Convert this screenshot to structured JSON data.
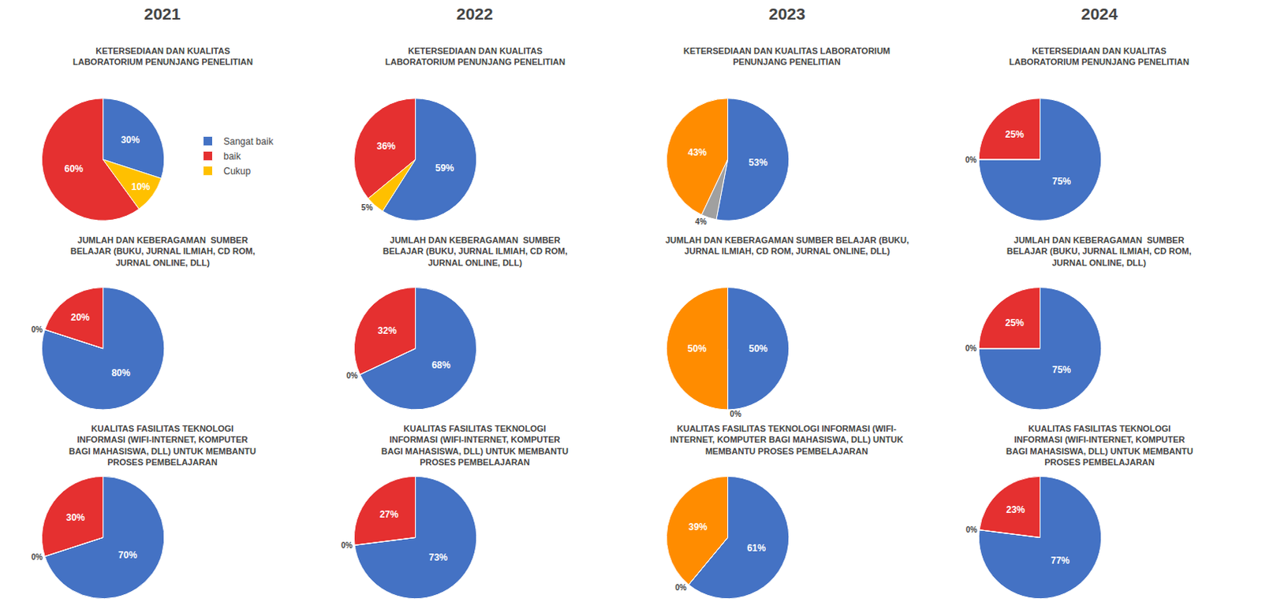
{
  "chart_data": [
    {
      "type": "pie",
      "title": "KETERSEDIAAN DAN KUALITAS\nLABORATORIUM PENUNJANG PENELITIAN",
      "annotations": [
        "2021"
      ],
      "categories": [
        "Sangat baik",
        "baik",
        "Cukup"
      ],
      "values": [
        30,
        60,
        10
      ],
      "value_labels": [
        "30%",
        "60%",
        "10%"
      ],
      "colors": [
        "#4472C4",
        "#E53030",
        "#FFC000"
      ],
      "data_labels": true,
      "legend": "right"
    },
    {
      "type": "pie",
      "title": "KETERSEDIAAN DAN KUALITAS\nLABORATORIUM PENUNJANG PENELITIAN",
      "annotations": [
        "2022"
      ],
      "categories": [
        "Sangat baik",
        "baik",
        "Cukup"
      ],
      "values": [
        59,
        36,
        5
      ],
      "value_labels": [
        "59%",
        "36%",
        "5%"
      ],
      "colors": [
        "#4472C4",
        "#E53030",
        "#FFC000"
      ],
      "data_labels": true,
      "legend": "right"
    },
    {
      "type": "pie",
      "title": "KETERSEDIAAN DAN KUALITAS LABORATORIUM\nPENUNJANG PENELITIAN",
      "annotations": [
        "2023"
      ],
      "categories": [
        "Sangat baik",
        "baik",
        "Cukup"
      ],
      "values": [
        53,
        43,
        4
      ],
      "value_labels": [
        "53%",
        "43%",
        "4%"
      ],
      "colors": [
        "#4472C4",
        "#FF8C00",
        "#A0A0A0"
      ],
      "data_labels": true,
      "legend": "right"
    },
    {
      "type": "pie",
      "title": "KETERSEDIAAN DAN KUALITAS\nLABORATORIUM PENUNJANG PENELITIAN",
      "annotations": [
        "2024"
      ],
      "categories": [
        "Sangat baik",
        "baik",
        "Cukup"
      ],
      "values": [
        75,
        25,
        0
      ],
      "value_labels": [
        "75%",
        "25%",
        "0%"
      ],
      "colors": [
        "#4472C4",
        "#E53030",
        "#FFC000"
      ],
      "data_labels": true,
      "legend": "right"
    },
    {
      "type": "pie",
      "title": "JUMLAH DAN KEBERAGAMAN  SUMBER\nBELAJAR (BUKU, JURNAL ILMIAH, CD ROM,\nJURNAL ONLINE, DLL)",
      "categories": [
        "Sangat baik",
        "baik",
        "Cukup"
      ],
      "values": [
        80,
        20,
        0
      ],
      "value_labels": [
        "80%",
        "20%",
        "0%"
      ],
      "colors": [
        "#4472C4",
        "#E53030",
        "#FFC000"
      ],
      "data_labels": true,
      "legend": "right"
    },
    {
      "type": "pie",
      "title": "JUMLAH DAN KEBERAGAMAN  SUMBER\nBELAJAR (BUKU, JURNAL ILMIAH, CD ROM,\nJURNAL ONLINE, DLL)",
      "categories": [
        "Sangat baik",
        "baik",
        "Cukup"
      ],
      "values": [
        68,
        32,
        0
      ],
      "value_labels": [
        "68%",
        "32%",
        "0%"
      ],
      "colors": [
        "#4472C4",
        "#E53030",
        "#FFC000"
      ],
      "data_labels": true,
      "legend": "right"
    },
    {
      "type": "pie",
      "title": "JUMLAH DAN KEBERAGAMAN SUMBER BELAJAR (BUKU,\nJURNAL ILMIAH, CD ROM, JURNAL ONLINE, DLL)",
      "categories": [
        "Sangat baik",
        "baik",
        "Cukup"
      ],
      "values": [
        50,
        50,
        0
      ],
      "value_labels": [
        "50%",
        "50%",
        "0%"
      ],
      "colors": [
        "#4472C4",
        "#FF8C00",
        "#A0A0A0"
      ],
      "data_labels": true,
      "legend": "right"
    },
    {
      "type": "pie",
      "title": "JUMLAH DAN KEBERAGAMAN  SUMBER\nBELAJAR (BUKU, JURNAL ILMIAH, CD ROM,\nJURNAL ONLINE, DLL)",
      "categories": [
        "Sangat baik",
        "baik",
        "Cukup"
      ],
      "values": [
        75,
        25,
        0
      ],
      "value_labels": [
        "75%",
        "25%",
        "0%"
      ],
      "colors": [
        "#4472C4",
        "#E53030",
        "#FFC000"
      ],
      "data_labels": true,
      "legend": "right"
    },
    {
      "type": "pie",
      "title": "KUALITAS FASILITAS TEKNOLOGI\nINFORMASI (WIFI-INTERNET, KOMPUTER\nBAGI MAHASISWA, DLL) UNTUK MEMBANTU\nPROSES PEMBELAJARAN",
      "categories": [
        "Sangat baik",
        "baik",
        "Cukup"
      ],
      "values": [
        70,
        30,
        0
      ],
      "value_labels": [
        "70%",
        "30%",
        "0%"
      ],
      "colors": [
        "#4472C4",
        "#E53030",
        "#FFC000"
      ],
      "data_labels": true,
      "legend": "right"
    },
    {
      "type": "pie",
      "title": "KUALITAS FASILITAS TEKNOLOGI\nINFORMASI (WIFI-INTERNET, KOMPUTER\nBAGI MAHASISWA, DLL) UNTUK MEMBANTU\nPROSES PEMBELAJARAN",
      "categories": [
        "Sangat baik",
        "baik",
        "Cukup"
      ],
      "values": [
        73,
        27,
        0
      ],
      "value_labels": [
        "73%",
        "27%",
        "0%"
      ],
      "colors": [
        "#4472C4",
        "#E53030",
        "#FFC000"
      ],
      "data_labels": true,
      "legend": "right"
    },
    {
      "type": "pie",
      "title": "KUALITAS FASILITAS TEKNOLOGI INFORMASI (WIFI-\nINTERNET, KOMPUTER BAGI MAHASISWA, DLL) UNTUK\nMEMBANTU PROSES PEMBELAJARAN",
      "categories": [
        "Sangat baik",
        "baik",
        "Cukup"
      ],
      "values": [
        61,
        39,
        0
      ],
      "value_labels": [
        "61%",
        "39%",
        "0%"
      ],
      "colors": [
        "#4472C4",
        "#FF8C00",
        "#A0A0A0"
      ],
      "data_labels": true,
      "legend": "right"
    },
    {
      "type": "pie",
      "title": "KUALITAS FASILITAS TEKNOLOGI\nINFORMASI (WIFI-INTERNET, KOMPUTER\nBAGI MAHASISWA, DLL) UNTUK MEMBANTU\nPROSES PEMBELAJARAN",
      "categories": [
        "Sangat baik",
        "baik",
        "Cukup"
      ],
      "values": [
        77,
        23,
        0
      ],
      "value_labels": [
        "77%",
        "23%",
        "0%"
      ],
      "colors": [
        "#4472C4",
        "#E53030",
        "#FFC000"
      ],
      "data_labels": true,
      "legend": "right"
    }
  ]
}
